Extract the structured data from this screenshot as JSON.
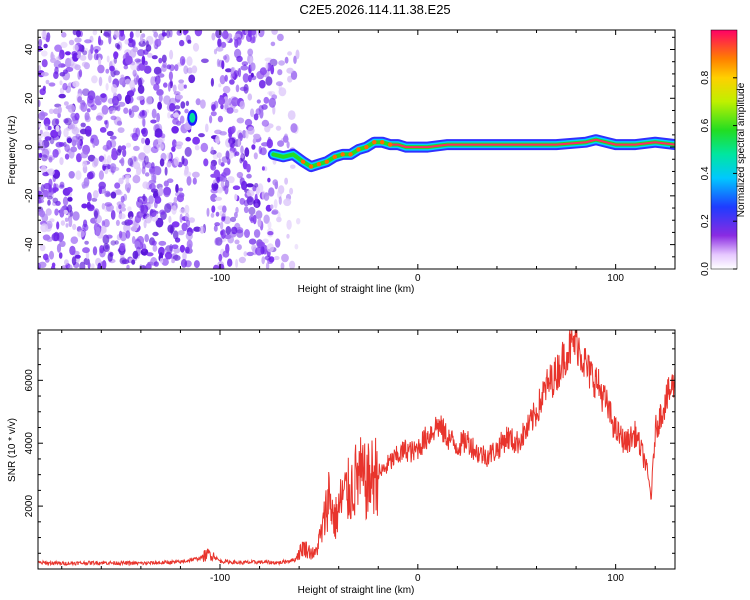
{
  "title": "C2E5.2026.114.11.38.E25",
  "chart_data": [
    {
      "type": "heatmap",
      "xlabel": "Height of straight line (km)",
      "ylabel": "Frequency (Hz)",
      "xlim": [
        -192,
        130
      ],
      "ylim": [
        -50,
        48
      ],
      "x_ticks": [
        -100,
        0,
        100
      ],
      "y_ticks": [
        -40,
        -20,
        0,
        20,
        40
      ],
      "colorbar": {
        "label": "Normalized spectral amplitude",
        "range": [
          0,
          1
        ],
        "ticks": [
          0.0,
          0.2,
          0.4,
          0.6,
          0.8
        ],
        "tick_labels": [
          "0.0",
          "0.2",
          "0.4",
          "0.6",
          "0.8"
        ]
      },
      "ridge": {
        "x": [
          -73,
          -68,
          -63,
          -58,
          -54,
          -50,
          -46,
          -42,
          -38,
          -34,
          -30,
          -26,
          -22,
          -18,
          -14,
          -10,
          -6,
          -2,
          5,
          15,
          30,
          50,
          70,
          85,
          90,
          95,
          100,
          110,
          120,
          130
        ],
        "y": [
          -3,
          -4,
          -3,
          -6,
          -8,
          -7,
          -6,
          -4,
          -3,
          -3,
          -1,
          0,
          2,
          2,
          1,
          1,
          0,
          0,
          0,
          1,
          1,
          1,
          1,
          2,
          3,
          2,
          1,
          1,
          2,
          1
        ]
      },
      "spot": {
        "x": -114,
        "y": 12
      }
    },
    {
      "type": "line",
      "xlabel": "Height of straight line (km)",
      "ylabel": "SNR (10 * v/v)",
      "xlim": [
        -192,
        130
      ],
      "ylim": [
        0,
        7600
      ],
      "x_ticks": [
        -100,
        0,
        100
      ],
      "y_ticks": [
        2000,
        4000,
        6000
      ],
      "series": [
        {
          "color": "#e8342c",
          "x": [
            -192,
            -180,
            -160,
            -140,
            -120,
            -110,
            -105,
            -100,
            -90,
            -80,
            -70,
            -62,
            -58,
            -52,
            -48,
            -45,
            -42,
            -38,
            -34,
            -30,
            -26,
            -22,
            -18,
            -14,
            -10,
            -6,
            -2,
            2,
            6,
            10,
            15,
            20,
            25,
            30,
            35,
            40,
            45,
            50,
            55,
            60,
            65,
            70,
            75,
            78,
            80,
            83,
            86,
            90,
            95,
            100,
            105,
            110,
            115,
            118,
            120,
            125,
            130
          ],
          "y": [
            200,
            180,
            200,
            180,
            220,
            350,
            500,
            250,
            200,
            220,
            200,
            300,
            700,
            450,
            1300,
            2400,
            1500,
            2300,
            2500,
            3000,
            2700,
            3000,
            3100,
            3400,
            3600,
            3800,
            3700,
            4000,
            4300,
            4600,
            4200,
            3900,
            4100,
            3700,
            3600,
            3800,
            4200,
            4000,
            4400,
            5000,
            5800,
            6200,
            6900,
            7100,
            7300,
            6800,
            6300,
            6000,
            5300,
            4400,
            4000,
            4300,
            3400,
            2300,
            4400,
            5300,
            6000
          ]
        }
      ]
    }
  ]
}
